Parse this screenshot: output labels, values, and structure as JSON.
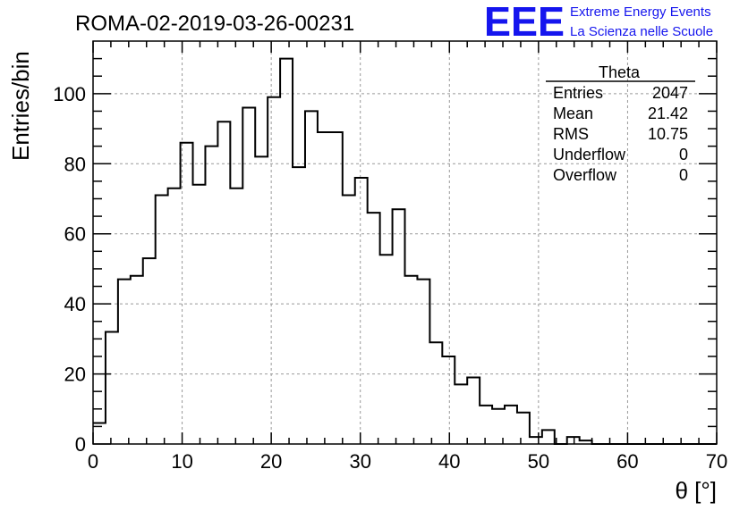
{
  "title": "ROMA-02-2019-03-26-00231",
  "logo": {
    "mark": "EEE",
    "line1": "Extreme Energy Events",
    "line2": "La Scienza nelle Scuole",
    "color": "#1515ee"
  },
  "stats": {
    "name": "Theta",
    "rows": [
      {
        "label": "Entries",
        "value": "2047"
      },
      {
        "label": "Mean",
        "value": "21.42"
      },
      {
        "label": "RMS",
        "value": "10.75"
      },
      {
        "label": "Underflow",
        "value": "0"
      },
      {
        "label": "Overflow",
        "value": "0"
      }
    ]
  },
  "chart_data": {
    "type": "bar",
    "style": "step-histogram",
    "title": "ROMA-02-2019-03-26-00231",
    "xlabel": "θ [°]",
    "ylabel": "Entries/bin",
    "xlim": [
      0,
      70
    ],
    "ylim": [
      0,
      115
    ],
    "grid": true,
    "legend": "top-right",
    "bin_width": 1.4,
    "bin_edges_start": 0,
    "values": [
      6,
      32,
      47,
      48,
      53,
      71,
      73,
      86,
      74,
      85,
      92,
      73,
      96,
      82,
      99,
      110,
      79,
      95,
      89,
      89,
      71,
      76,
      66,
      54,
      67,
      48,
      47,
      29,
      25,
      17,
      19,
      11,
      10,
      11,
      9,
      2,
      4,
      0,
      2,
      1,
      0,
      0,
      0,
      0,
      0,
      0,
      0,
      0,
      0,
      0
    ],
    "x_ticks": [
      "0",
      "10",
      "20",
      "30",
      "40",
      "50",
      "60",
      "70"
    ],
    "y_ticks": [
      "0",
      "20",
      "40",
      "60",
      "80",
      "100"
    ]
  }
}
